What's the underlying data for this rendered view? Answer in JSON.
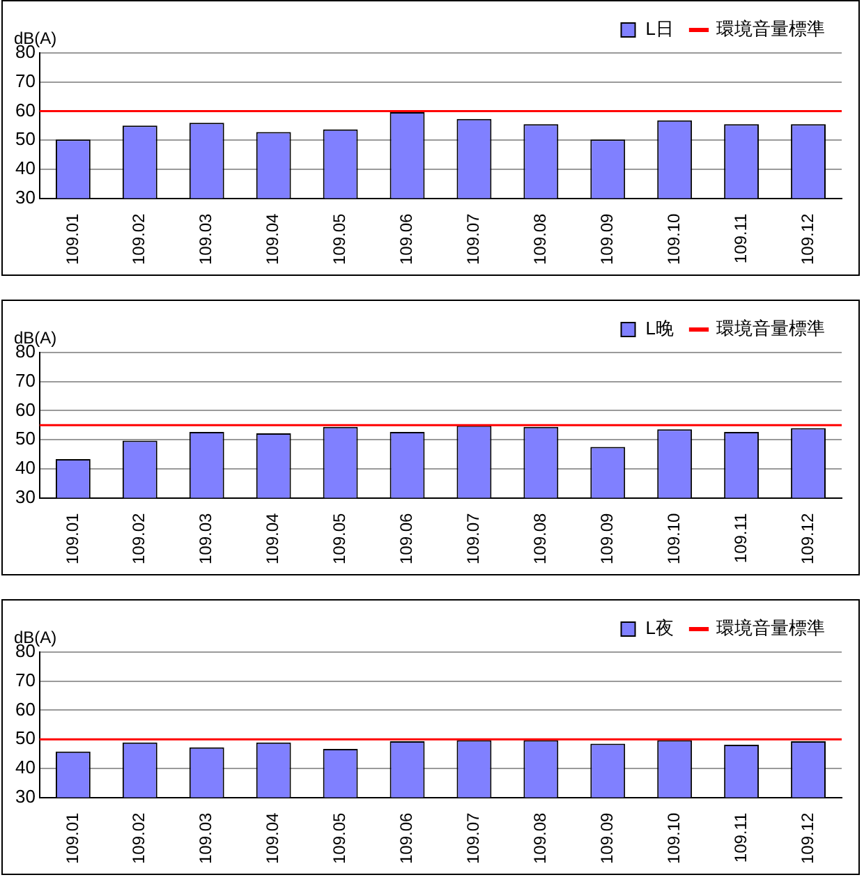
{
  "chart_data": [
    {
      "type": "bar",
      "ylabel": "dB(A)",
      "categories": [
        "109.01",
        "109.02",
        "109.03",
        "109.04",
        "109.05",
        "109.06",
        "109.07",
        "109.08",
        "109.09",
        "109.10",
        "109.11",
        "109.12"
      ],
      "series": [
        {
          "name": "L日",
          "color": "#8080ff",
          "values": [
            50.2,
            55,
            56,
            52.8,
            53.7,
            59.6,
            57.3,
            55.5,
            50.2,
            56.8,
            55.5,
            55.5
          ]
        }
      ],
      "ylim": [
        30,
        80
      ],
      "yticks": [
        30,
        40,
        50,
        60,
        70,
        80
      ],
      "grid": "y",
      "legend": "top",
      "ref_lines": [
        {
          "axis": "y",
          "value": 60,
          "label": "環境音量標準",
          "color": "#ff0000"
        }
      ]
    },
    {
      "type": "bar",
      "ylabel": "dB(A)",
      "categories": [
        "109.01",
        "109.02",
        "109.03",
        "109.04",
        "109.05",
        "109.06",
        "109.07",
        "109.08",
        "109.09",
        "109.10",
        "109.11",
        "109.12"
      ],
      "series": [
        {
          "name": "L晚",
          "color": "#8080ff",
          "values": [
            43.3,
            49.7,
            52.7,
            52.2,
            54.4,
            52.7,
            54.9,
            54.4,
            47.5,
            53.6,
            52.7,
            54.0
          ]
        }
      ],
      "ylim": [
        30,
        80
      ],
      "yticks": [
        30,
        40,
        50,
        60,
        70,
        80
      ],
      "grid": "y",
      "legend": "top",
      "ref_lines": [
        {
          "axis": "y",
          "value": 55,
          "label": "環境音量標準",
          "color": "#ff0000"
        }
      ]
    },
    {
      "type": "bar",
      "ylabel": "dB(A)",
      "categories": [
        "109.01",
        "109.02",
        "109.03",
        "109.04",
        "109.05",
        "109.06",
        "109.07",
        "109.08",
        "109.09",
        "109.10",
        "109.11",
        "109.12"
      ],
      "series": [
        {
          "name": "L夜",
          "color": "#8080ff",
          "values": [
            45.8,
            48.9,
            47.2,
            48.9,
            46.7,
            49.3,
            49.7,
            49.7,
            48.5,
            49.7,
            48.1,
            49.3
          ]
        }
      ],
      "ylim": [
        30,
        80
      ],
      "yticks": [
        30,
        40,
        50,
        60,
        70,
        80
      ],
      "grid": "y",
      "legend": "top",
      "ref_lines": [
        {
          "axis": "y",
          "value": 50,
          "label": "環境音量標準",
          "color": "#ff0000"
        }
      ]
    }
  ]
}
